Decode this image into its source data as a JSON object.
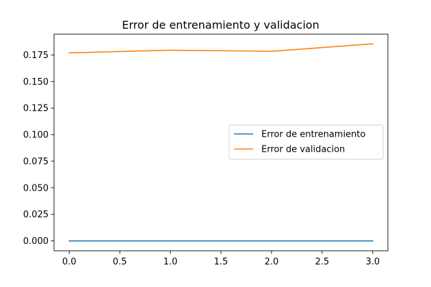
{
  "chart_data": {
    "type": "line",
    "title": "Error de entrenamiento y validacion",
    "xlabel": "",
    "ylabel": "",
    "x": [
      0,
      1,
      2,
      3
    ],
    "xlim": [
      -0.15,
      3.15
    ],
    "ylim": [
      -0.0093,
      0.1946
    ],
    "xticks": [
      0.0,
      0.5,
      1.0,
      1.5,
      2.0,
      2.5,
      3.0
    ],
    "xtick_labels": [
      "0.0",
      "0.5",
      "1.0",
      "1.5",
      "2.0",
      "2.5",
      "3.0"
    ],
    "yticks": [
      0.0,
      0.025,
      0.05,
      0.075,
      0.1,
      0.125,
      0.15,
      0.175
    ],
    "ytick_labels": [
      "0.000",
      "0.025",
      "0.050",
      "0.075",
      "0.100",
      "0.125",
      "0.150",
      "0.175"
    ],
    "grid": false,
    "legend_position": "center-right",
    "series": [
      {
        "name": "Error de entrenamiento",
        "color": "#1f77b4",
        "values": [
          0.0,
          0.0,
          0.0,
          0.0
        ]
      },
      {
        "name": "Error de validacion",
        "color": "#ff7f0e",
        "values": [
          0.177,
          0.1795,
          0.1785,
          0.1855
        ]
      }
    ]
  }
}
